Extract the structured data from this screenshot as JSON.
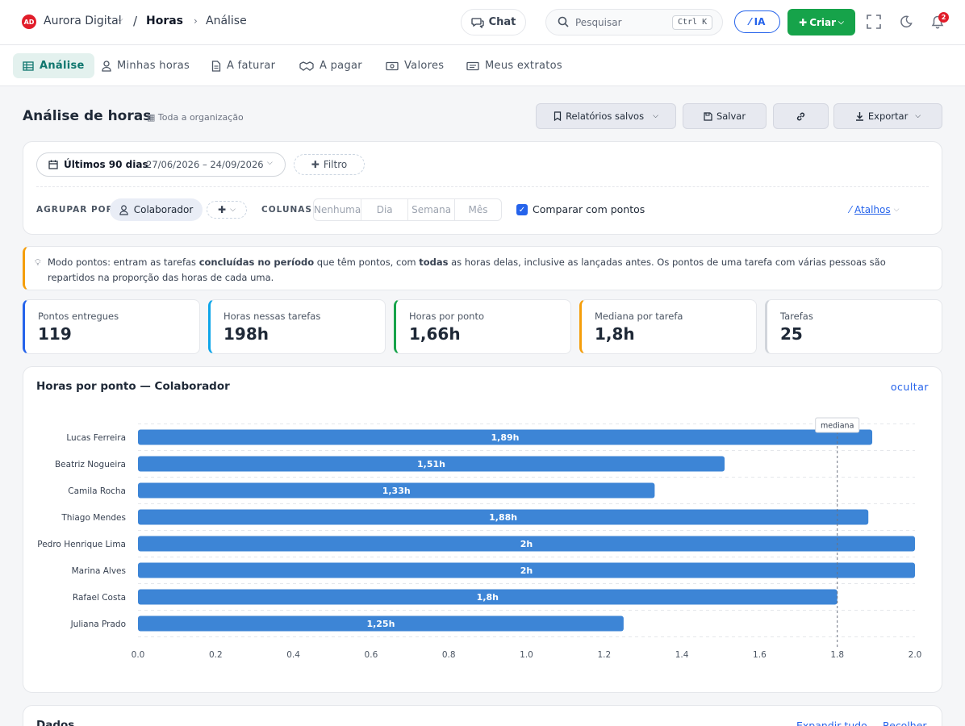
{
  "header": {
    "logo_initials": "AD",
    "org_name": "Aurora Digital",
    "breadcrumb_sep": "/",
    "section": "Horas",
    "subsection": "Análise",
    "chat_label": "Chat",
    "search_placeholder": "Pesquisar",
    "search_shortcut": "Ctrl K",
    "ai_label": "IA",
    "create_label": "Criar",
    "notifications_count": "2"
  },
  "tabs": [
    {
      "label": "Análise",
      "icon": "table-icon",
      "active": true
    },
    {
      "label": "Minhas horas",
      "icon": "user-icon"
    },
    {
      "label": "A faturar",
      "icon": "document-icon"
    },
    {
      "label": "A pagar",
      "icon": "handshake-icon"
    },
    {
      "label": "Valores",
      "icon": "banknote-icon"
    },
    {
      "label": "Meus extratos",
      "icon": "statement-icon"
    }
  ],
  "page": {
    "title": "Análise de horas",
    "scope": "Toda a organização",
    "saved_reports_label": "Relatórios salvos",
    "save_label": "Salvar",
    "export_label": "Exportar"
  },
  "filters": {
    "period_label": "Últimos 90 dias",
    "period_range": "27/06/2026 – 24/09/2026",
    "filter_label": "Filtro",
    "group_by_label": "AGRUPAR POR",
    "group_by_value": "Colaborador",
    "columns_label": "COLUNAS",
    "columns_options": [
      "Nenhuma",
      "Dia",
      "Semana",
      "Mês"
    ],
    "compare_label": "Comparar com pontos",
    "compare_checked": true,
    "shortcuts_label": "Atalhos"
  },
  "info": {
    "t1": "Modo pontos: entram as tarefas ",
    "b1": "concluídas no período",
    "t2": " que têm pontos, com ",
    "b2": "todas",
    "t3": " as horas delas, inclusive as lançadas antes. Os pontos de uma tarefa com várias pessoas são repartidos na proporção das horas de cada uma."
  },
  "stats": [
    {
      "label": "Pontos entregues",
      "value": "119",
      "color": "#2563eb"
    },
    {
      "label": "Horas nessas tarefas",
      "value": "198h",
      "color": "#0ea5e9"
    },
    {
      "label": "Horas por ponto",
      "value": "1,66h",
      "color": "#16a34a"
    },
    {
      "label": "Mediana por tarefa",
      "value": "1,8h",
      "color": "#f59e0b"
    },
    {
      "label": "Tarefas",
      "value": "25",
      "color": "#d1d5db"
    }
  ],
  "chart_card": {
    "title": "Horas por ponto — Colaborador",
    "hide_label": "ocultar"
  },
  "chart_data": {
    "type": "bar",
    "orientation": "horizontal",
    "categories": [
      "Lucas Ferreira",
      "Beatriz Nogueira",
      "Camila Rocha",
      "Thiago Mendes",
      "Pedro Henrique Lima",
      "Marina Alves",
      "Rafael Costa",
      "Juliana Prado"
    ],
    "values": [
      1.89,
      1.51,
      1.33,
      1.88,
      2.0,
      2.0,
      1.8,
      1.25
    ],
    "value_labels": [
      "1,89h",
      "1,51h",
      "1,33h",
      "1,88h",
      "2h",
      "2h",
      "1,8h",
      "1,25h"
    ],
    "xlim": [
      0,
      2.0
    ],
    "xticks": [
      "0.0",
      "0.2",
      "0.4",
      "0.6",
      "0.8",
      "1.0",
      "1.2",
      "1.4",
      "1.6",
      "1.8",
      "2.0"
    ],
    "median": 1.8,
    "median_label": "mediana",
    "bar_color": "#3d85d6",
    "grid": "horizontal dashed"
  },
  "data_section": {
    "title": "Dados",
    "expand_label": "Expandir tudo",
    "collapse_label": "Recolher"
  }
}
